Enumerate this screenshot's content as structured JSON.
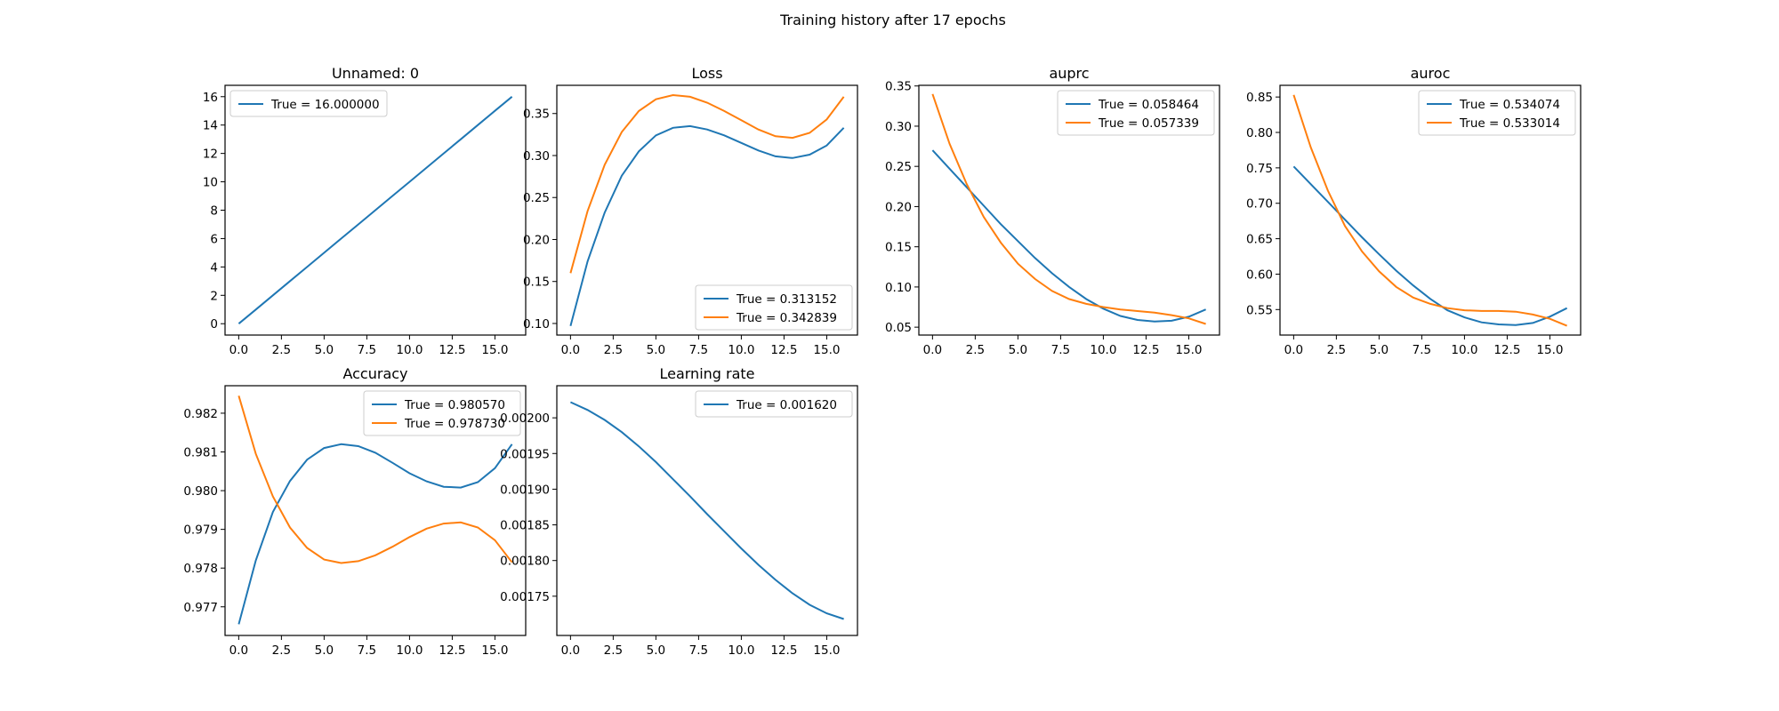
{
  "title": "Training history after 17 epochs",
  "colors": {
    "blue": "#1f77b4",
    "orange": "#ff7f0e"
  },
  "chart_data": [
    {
      "type": "line",
      "title": "Unnamed: 0",
      "xlim": [
        -0.8,
        16.8
      ],
      "ylim": [
        -0.8,
        16.8
      ],
      "xticks": [
        "0.0",
        "2.5",
        "5.0",
        "7.5",
        "10.0",
        "12.5",
        "15.0"
      ],
      "yticks": [
        "0",
        "2",
        "4",
        "6",
        "8",
        "10",
        "12",
        "14",
        "16"
      ],
      "legend": "upper-left",
      "series": [
        {
          "name": "True = 16.000000",
          "color": "#1f77b4",
          "x": [
            0,
            1,
            2,
            3,
            4,
            5,
            6,
            7,
            8,
            9,
            10,
            11,
            12,
            13,
            14,
            15,
            16
          ],
          "values": [
            0,
            1,
            2,
            3,
            4,
            5,
            6,
            7,
            8,
            9,
            10,
            11,
            12,
            13,
            14,
            15,
            16
          ]
        }
      ]
    },
    {
      "type": "line",
      "title": "Loss",
      "xlim": [
        -0.8,
        16.8
      ],
      "ylim": [
        0.0862,
        0.3836
      ],
      "xticks": [
        "0.0",
        "2.5",
        "5.0",
        "7.5",
        "10.0",
        "12.5",
        "15.0"
      ],
      "yticks": [
        "0.10",
        "0.15",
        "0.20",
        "0.25",
        "0.30",
        "0.35"
      ],
      "legend": "lower-right",
      "series": [
        {
          "name": "True = 0.313152",
          "color": "#1f77b4",
          "x": [
            0,
            1,
            2,
            3,
            4,
            5,
            6,
            7,
            8,
            9,
            10,
            11,
            12,
            13,
            14,
            15,
            16
          ],
          "values": [
            0.097,
            0.174,
            0.232,
            0.276,
            0.305,
            0.324,
            0.333,
            0.335,
            0.331,
            0.324,
            0.315,
            0.306,
            0.299,
            0.297,
            0.301,
            0.312,
            0.333
          ]
        },
        {
          "name": "True = 0.342839",
          "color": "#ff7f0e",
          "x": [
            0,
            1,
            2,
            3,
            4,
            5,
            6,
            7,
            8,
            9,
            10,
            11,
            12,
            13,
            14,
            15,
            16
          ],
          "values": [
            0.16,
            0.234,
            0.289,
            0.328,
            0.353,
            0.367,
            0.372,
            0.37,
            0.363,
            0.353,
            0.342,
            0.331,
            0.323,
            0.321,
            0.327,
            0.343,
            0.37
          ]
        }
      ]
    },
    {
      "type": "line",
      "title": "auprc",
      "xlim": [
        -0.8,
        16.8
      ],
      "ylim": [
        0.0402,
        0.3508
      ],
      "xticks": [
        "0.0",
        "2.5",
        "5.0",
        "7.5",
        "10.0",
        "12.5",
        "15.0"
      ],
      "yticks": [
        "0.05",
        "0.10",
        "0.15",
        "0.20",
        "0.25",
        "0.30",
        "0.35"
      ],
      "legend": "upper-right",
      "series": [
        {
          "name": "True = 0.058464",
          "color": "#1f77b4",
          "x": [
            0,
            1,
            2,
            3,
            4,
            5,
            6,
            7,
            8,
            9,
            10,
            11,
            12,
            13,
            14,
            15,
            16
          ],
          "values": [
            0.27,
            0.247,
            0.224,
            0.201,
            0.178,
            0.157,
            0.136,
            0.117,
            0.1,
            0.085,
            0.073,
            0.064,
            0.059,
            0.057,
            0.058,
            0.063,
            0.072
          ]
        },
        {
          "name": "True = 0.057339",
          "color": "#ff7f0e",
          "x": [
            0,
            1,
            2,
            3,
            4,
            5,
            6,
            7,
            8,
            9,
            10,
            11,
            12,
            13,
            14,
            15,
            16
          ],
          "values": [
            0.34,
            0.278,
            0.228,
            0.187,
            0.155,
            0.129,
            0.11,
            0.095,
            0.085,
            0.079,
            0.075,
            0.072,
            0.07,
            0.068,
            0.065,
            0.061,
            0.054
          ]
        }
      ]
    },
    {
      "type": "line",
      "title": "auroc",
      "xlim": [
        -0.8,
        16.8
      ],
      "ylim": [
        0.514,
        0.8665
      ],
      "xticks": [
        "0.0",
        "2.5",
        "5.0",
        "7.5",
        "10.0",
        "12.5",
        "15.0"
      ],
      "yticks": [
        "0.55",
        "0.60",
        "0.65",
        "0.70",
        "0.75",
        "0.80",
        "0.85"
      ],
      "legend": "upper-right",
      "series": [
        {
          "name": "True = 0.534074",
          "color": "#1f77b4",
          "x": [
            0,
            1,
            2,
            3,
            4,
            5,
            6,
            7,
            8,
            9,
            10,
            11,
            12,
            13,
            14,
            15,
            16
          ],
          "values": [
            0.752,
            0.727,
            0.702,
            0.677,
            0.652,
            0.628,
            0.605,
            0.584,
            0.565,
            0.549,
            0.539,
            0.532,
            0.529,
            0.528,
            0.531,
            0.54,
            0.552
          ]
        },
        {
          "name": "True = 0.533014",
          "color": "#ff7f0e",
          "x": [
            0,
            1,
            2,
            3,
            4,
            5,
            6,
            7,
            8,
            9,
            10,
            11,
            12,
            13,
            14,
            15,
            16
          ],
          "values": [
            0.853,
            0.779,
            0.718,
            0.668,
            0.632,
            0.604,
            0.582,
            0.567,
            0.558,
            0.552,
            0.549,
            0.548,
            0.548,
            0.547,
            0.543,
            0.537,
            0.527
          ]
        }
      ]
    },
    {
      "type": "line",
      "title": "Accuracy",
      "xlim": [
        -0.8,
        16.8
      ],
      "ylim": [
        0.97626,
        0.98271
      ],
      "xticks": [
        "0.0",
        "2.5",
        "5.0",
        "7.5",
        "10.0",
        "12.5",
        "15.0"
      ],
      "yticks": [
        "0.977",
        "0.978",
        "0.979",
        "0.980",
        "0.981",
        "0.982"
      ],
      "legend": "upper-right",
      "series": [
        {
          "name": "True = 0.980570",
          "color": "#1f77b4",
          "x": [
            0,
            1,
            2,
            3,
            4,
            5,
            6,
            7,
            8,
            9,
            10,
            11,
            12,
            13,
            14,
            15,
            16
          ],
          "values": [
            0.97655,
            0.9782,
            0.97945,
            0.98025,
            0.9808,
            0.9811,
            0.9812,
            0.98115,
            0.98098,
            0.98072,
            0.98045,
            0.98024,
            0.9801,
            0.98008,
            0.98022,
            0.98058,
            0.9812
          ]
        },
        {
          "name": "True = 0.978730",
          "color": "#ff7f0e",
          "x": [
            0,
            1,
            2,
            3,
            4,
            5,
            6,
            7,
            8,
            9,
            10,
            11,
            12,
            13,
            14,
            15,
            16
          ],
          "values": [
            0.98245,
            0.98095,
            0.97985,
            0.97905,
            0.97852,
            0.97822,
            0.97813,
            0.97818,
            0.97833,
            0.97855,
            0.9788,
            0.97902,
            0.97915,
            0.97918,
            0.97905,
            0.97872,
            0.97815
          ]
        }
      ]
    },
    {
      "type": "line",
      "title": "Learning rate",
      "xlim": [
        -0.8,
        16.8
      ],
      "ylim": [
        0.001695,
        0.002045
      ],
      "xticks": [
        "0.0",
        "2.5",
        "5.0",
        "7.5",
        "10.0",
        "12.5",
        "15.0"
      ],
      "yticks": [
        "0.00175",
        "0.00180",
        "0.00185",
        "0.00190",
        "0.00195",
        "0.00200"
      ],
      "legend": "upper-right",
      "series": [
        {
          "name": "True = 0.001620",
          "color": "#1f77b4",
          "x": [
            0,
            1,
            2,
            3,
            4,
            5,
            6,
            7,
            8,
            9,
            10,
            11,
            12,
            13,
            14,
            15,
            16
          ],
          "values": [
            0.002022,
            0.002011,
            0.001997,
            0.00198,
            0.00196,
            0.001938,
            0.001914,
            0.00189,
            0.001865,
            0.001841,
            0.001817,
            0.001794,
            0.001773,
            0.001754,
            0.001738,
            0.001726,
            0.001718
          ]
        }
      ]
    }
  ]
}
